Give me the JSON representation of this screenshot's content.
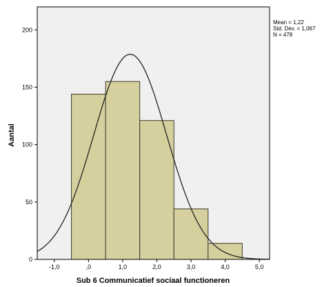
{
  "chart_data": {
    "type": "bar",
    "subtype": "histogram",
    "xlabel": "Sub 6 Communicatief sociaal functioneren",
    "ylabel": "Aantal",
    "xlim": [
      -1.5,
      5.3
    ],
    "ylim": [
      0,
      220
    ],
    "x_ticks": [
      {
        "value": -1.0,
        "label": "-1,0"
      },
      {
        "value": 0.0,
        "label": ",0"
      },
      {
        "value": 1.0,
        "label": "1,0"
      },
      {
        "value": 2.0,
        "label": "2,0"
      },
      {
        "value": 3.0,
        "label": "3,0"
      },
      {
        "value": 4.0,
        "label": "4,0"
      },
      {
        "value": 5.0,
        "label": "5,0"
      }
    ],
    "y_ticks": [
      {
        "value": 0,
        "label": "0"
      },
      {
        "value": 50,
        "label": "50"
      },
      {
        "value": 100,
        "label": "100"
      },
      {
        "value": 150,
        "label": "150"
      },
      {
        "value": 200,
        "label": "200"
      }
    ],
    "bins": [
      {
        "x_start": -0.5,
        "x_end": 0.5,
        "count": 144
      },
      {
        "x_start": 0.5,
        "x_end": 1.5,
        "count": 155
      },
      {
        "x_start": 1.5,
        "x_end": 2.5,
        "count": 121
      },
      {
        "x_start": 2.5,
        "x_end": 3.5,
        "count": 44
      },
      {
        "x_start": 3.5,
        "x_end": 4.5,
        "count": 14
      }
    ],
    "normal_curve": {
      "mean": 1.22,
      "std_dev": 1.067,
      "n": 478
    },
    "stats_lines": [
      "Mean = 1,22",
      "Std. Dev. = 1,067",
      "N = 478"
    ],
    "grid": false,
    "colors": {
      "bar_fill": "#d5d09e",
      "bar_stroke": "#3a3a2a",
      "plot_background": "#f0f0f0",
      "curve": "#222222",
      "axis": "#000000"
    }
  }
}
